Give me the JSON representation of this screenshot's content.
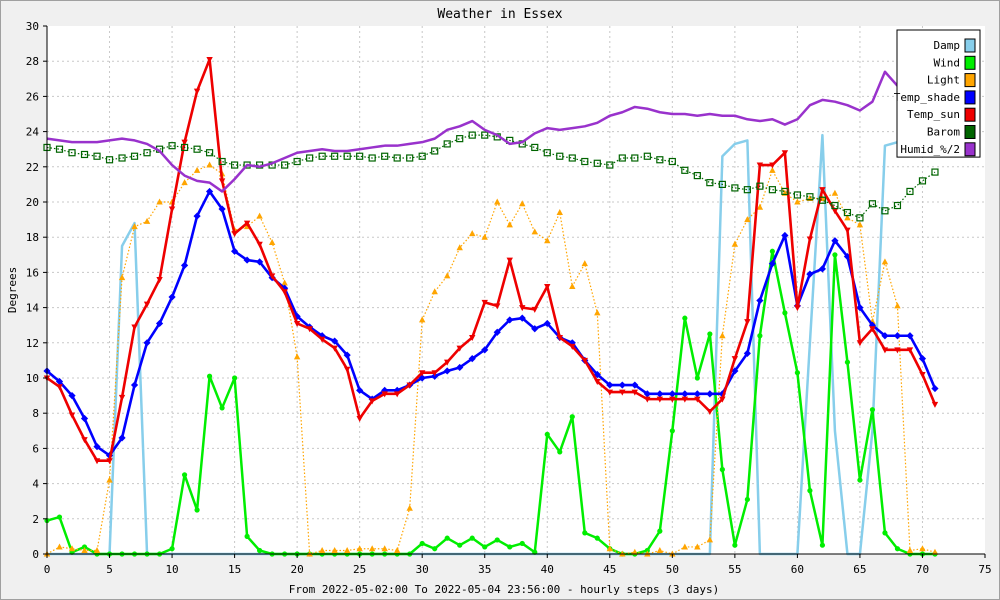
{
  "chart_data": {
    "type": "line",
    "title": "Weather in Essex",
    "xlabel": "From 2022-05-02:00 To 2022-05-04 23:56:00 - hourly steps (3 days)",
    "ylabel": "Degrees",
    "xlim": [
      0,
      75
    ],
    "ylim": [
      0,
      30
    ],
    "xticks": [
      0,
      5,
      10,
      15,
      20,
      25,
      30,
      35,
      40,
      45,
      50,
      55,
      60,
      65,
      70,
      75
    ],
    "yticks": [
      0,
      2,
      4,
      6,
      8,
      10,
      12,
      14,
      16,
      18,
      20,
      22,
      24,
      26,
      28,
      30
    ],
    "grid": true,
    "legend_position": "top-right",
    "series": [
      {
        "name": "Damp",
        "color": "#87ceeb",
        "marker": "none",
        "style": "solid",
        "values": [
          0,
          0,
          0,
          0,
          0,
          0,
          17.5,
          18.8,
          0,
          0,
          0,
          0,
          0,
          0,
          0,
          0,
          0,
          0,
          0,
          0,
          0,
          0,
          0,
          0,
          0,
          0,
          0,
          0,
          0,
          0,
          0,
          0,
          0,
          0,
          0,
          0,
          0,
          0,
          0,
          0,
          0,
          0,
          0,
          0,
          0,
          0,
          0,
          0,
          0,
          0,
          0,
          0,
          0,
          0,
          22.6,
          23.3,
          23.5,
          0,
          0,
          0,
          0,
          12,
          23.8,
          7,
          0,
          0,
          7,
          23.2,
          23.4,
          23.5,
          23.5,
          23.5
        ]
      },
      {
        "name": "Wind",
        "color": "#00ee00",
        "marker": "circle",
        "style": "solid",
        "values": [
          1.9,
          2.1,
          0.1,
          0.4,
          0,
          0,
          0,
          0,
          0,
          0,
          0.3,
          4.5,
          2.5,
          10.1,
          8.3,
          10,
          1,
          0.2,
          0,
          0,
          0,
          0,
          0,
          0,
          0,
          0,
          0,
          0,
          0,
          0,
          0.6,
          0.3,
          0.9,
          0.5,
          0.9,
          0.4,
          0.8,
          0.4,
          0.6,
          0.1,
          6.8,
          5.8,
          7.8,
          1.2,
          0.9,
          0.3,
          0,
          0,
          0.2,
          1.3,
          7,
          13.4,
          10,
          12.5,
          4.8,
          0.5,
          3.1,
          12.4,
          17.2,
          13.7,
          10.3,
          3.6,
          0.5,
          17,
          10.9,
          4.2,
          8.2,
          1.2,
          0.3,
          0,
          0,
          0
        ]
      },
      {
        "name": "Light",
        "color": "#ffa500",
        "marker": "triangle",
        "style": "dotted",
        "values": [
          0,
          0.4,
          0.3,
          0.2,
          0.2,
          4.2,
          15.7,
          18.6,
          18.9,
          20,
          20,
          21.1,
          21.8,
          22.1,
          21.6,
          18.4,
          18.6,
          19.2,
          17.7,
          15.4,
          11.2,
          0,
          0.2,
          0.2,
          0.2,
          0.3,
          0.3,
          0.3,
          0.2,
          2.6,
          13.3,
          14.9,
          15.8,
          17.4,
          18.2,
          18,
          20,
          18.7,
          19.9,
          18.3,
          17.8,
          19.4,
          15.2,
          16.5,
          13.7,
          0.3,
          0,
          0.1,
          0,
          0.2,
          0,
          0.4,
          0.4,
          0.8,
          12.4,
          17.6,
          19,
          19.7,
          21.8,
          20.5,
          20,
          20.2,
          20.2,
          20.5,
          19.1,
          18.7,
          13.2,
          16.6,
          14.1,
          0.2,
          0.3,
          0.1
        ]
      },
      {
        "name": "Temp_shade",
        "color": "#0000ff",
        "marker": "diamond",
        "style": "solid",
        "values": [
          10.4,
          9.8,
          9,
          7.7,
          6.1,
          5.6,
          6.6,
          9.6,
          12,
          13.1,
          14.6,
          16.4,
          19.2,
          20.6,
          19.6,
          17.2,
          16.7,
          16.6,
          15.7,
          15.1,
          13.5,
          12.9,
          12.4,
          12.1,
          11.3,
          9.3,
          8.8,
          9.3,
          9.3,
          9.6,
          10,
          10.1,
          10.4,
          10.6,
          11.1,
          11.6,
          12.6,
          13.3,
          13.4,
          12.8,
          13.1,
          12.3,
          12,
          11,
          10.2,
          9.6,
          9.6,
          9.6,
          9.1,
          9.1,
          9.1,
          9.1,
          9.1,
          9.1,
          9.1,
          10.4,
          11.4,
          14.4,
          16.5,
          18.1,
          14.1,
          15.9,
          16.2,
          17.8,
          16.9,
          14,
          13,
          12.4,
          12.4,
          12.4,
          11.1,
          9.4
        ]
      },
      {
        "name": "Temp_sun",
        "color": "#ee0000",
        "marker": "triangle-down",
        "style": "solid",
        "values": [
          10,
          9.5,
          7.9,
          6.5,
          5.3,
          5.3,
          8.9,
          12.9,
          14.2,
          15.6,
          19.6,
          23.4,
          26.3,
          28.1,
          21.2,
          18.2,
          18.8,
          17.6,
          15.8,
          14.9,
          13.1,
          12.8,
          12.2,
          11.7,
          10.5,
          7.7,
          8.7,
          9.1,
          9.1,
          9.6,
          10.3,
          10.3,
          10.9,
          11.7,
          12.3,
          14.3,
          14.1,
          16.7,
          14,
          13.9,
          15.2,
          12.3,
          11.8,
          11,
          9.8,
          9.2,
          9.2,
          9.2,
          8.8,
          8.8,
          8.8,
          8.8,
          8.8,
          8.1,
          8.8,
          11.1,
          13.2,
          22.1,
          22.1,
          22.8,
          14,
          17.9,
          20.7,
          19.5,
          18.4,
          12,
          12.8,
          11.6,
          11.6,
          11.6,
          10.2,
          8.5
        ]
      },
      {
        "name": "Barom",
        "color": "#006400",
        "marker": "square-open",
        "style": "dotted",
        "values": [
          23.1,
          23,
          22.8,
          22.7,
          22.6,
          22.4,
          22.5,
          22.6,
          22.8,
          23,
          23.2,
          23.1,
          23,
          22.8,
          22.3,
          22.1,
          22.1,
          22.1,
          22.1,
          22.1,
          22.3,
          22.5,
          22.6,
          22.6,
          22.6,
          22.6,
          22.5,
          22.6,
          22.5,
          22.5,
          22.6,
          22.9,
          23.3,
          23.6,
          23.8,
          23.8,
          23.7,
          23.5,
          23.3,
          23.1,
          22.8,
          22.6,
          22.5,
          22.3,
          22.2,
          22.1,
          22.5,
          22.5,
          22.6,
          22.4,
          22.3,
          21.8,
          21.5,
          21.1,
          21,
          20.8,
          20.7,
          20.9,
          20.7,
          20.6,
          20.4,
          20.3,
          20.1,
          19.8,
          19.4,
          19.1,
          19.9,
          19.5,
          19.8,
          20.6,
          21.2,
          21.7
        ]
      },
      {
        "name": "Humid_%/2",
        "color": "#9932cc",
        "marker": "none",
        "style": "solid",
        "values": [
          23.6,
          23.5,
          23.4,
          23.4,
          23.4,
          23.5,
          23.6,
          23.5,
          23.3,
          22.9,
          22.1,
          21.5,
          21.2,
          21.1,
          20.6,
          21.3,
          22.1,
          22,
          22.2,
          22.5,
          22.8,
          22.9,
          23,
          22.9,
          22.9,
          23,
          23.1,
          23.2,
          23.2,
          23.3,
          23.4,
          23.6,
          24.1,
          24.3,
          24.6,
          24.1,
          23.8,
          23.3,
          23.4,
          23.9,
          24.2,
          24.1,
          24.2,
          24.3,
          24.5,
          24.9,
          25.1,
          25.4,
          25.3,
          25.1,
          25,
          25,
          24.9,
          25,
          24.9,
          24.9,
          24.7,
          24.6,
          24.7,
          24.4,
          24.7,
          25.5,
          25.8,
          25.7,
          25.5,
          25.2,
          25.7,
          27.4,
          26.6,
          26.8,
          26.6,
          26.3
        ]
      }
    ]
  }
}
